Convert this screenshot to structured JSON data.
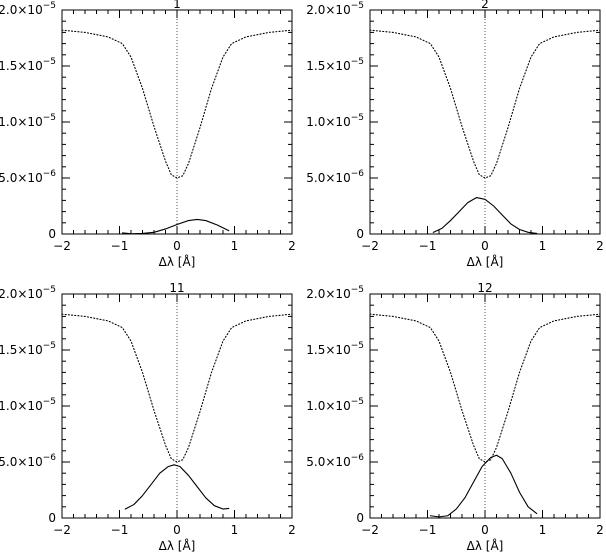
{
  "chart_data": [
    {
      "type": "line",
      "title": "1",
      "xlabel": "Δλ [Å]",
      "ylabel": "",
      "xlim": [
        -2,
        2
      ],
      "ylim": [
        0,
        2e-05
      ],
      "x_ticks": [
        -2,
        -1,
        0,
        1,
        2
      ],
      "x_tick_labels": [
        "−2",
        "−1",
        "0",
        "1",
        "2"
      ],
      "y_ticks": [
        0,
        5e-06,
        1e-05,
        1.5e-05,
        2e-05
      ],
      "y_tick_labels": [
        {
          "mant": "0",
          "exp": ""
        },
        {
          "mant": "5.0×10",
          "exp": "−6"
        },
        {
          "mant": "1.0×10",
          "exp": "−5"
        },
        {
          "mant": "1.5×10",
          "exp": "−5"
        },
        {
          "mant": "2.0×10",
          "exp": "−5"
        }
      ],
      "grid": false,
      "zero_line": {
        "x": 0,
        "style": "dotted"
      },
      "series": [
        {
          "style": "dotted",
          "x": [
            -2.0,
            -1.6,
            -1.2,
            -0.95,
            -0.8,
            -0.6,
            -0.4,
            -0.2,
            -0.1,
            0.0,
            0.1,
            0.2,
            0.4,
            0.6,
            0.8,
            0.95,
            1.2,
            1.6,
            2.0
          ],
          "values": [
            1.82e-05,
            1.8e-05,
            1.76e-05,
            1.7e-05,
            1.58e-05,
            1.3e-05,
            9.6e-06,
            6.5e-06,
            5.3e-06,
            5e-06,
            5.2e-06,
            6.3e-06,
            9.5e-06,
            1.3e-05,
            1.58e-05,
            1.7e-05,
            1.76e-05,
            1.8e-05,
            1.82e-05
          ]
        },
        {
          "style": "solid",
          "x": [
            -0.95,
            -0.8,
            -0.6,
            -0.4,
            -0.2,
            0.0,
            0.2,
            0.35,
            0.5,
            0.7,
            0.9
          ],
          "values": [
            1e-07,
            2e-08,
            5e-08,
            1.5e-07,
            4.5e-07,
            8.5e-07,
            1.2e-06,
            1.3e-06,
            1.2e-06,
            8e-07,
            3e-07
          ]
        }
      ]
    },
    {
      "type": "line",
      "title": "2",
      "xlabel": "Δλ [Å]",
      "ylabel": "",
      "xlim": [
        -2,
        2
      ],
      "ylim": [
        0,
        2e-05
      ],
      "x_ticks": [
        -2,
        -1,
        0,
        1,
        2
      ],
      "x_tick_labels": [
        "−2",
        "−1",
        "0",
        "1",
        "2"
      ],
      "y_ticks": [
        0,
        5e-06,
        1e-05,
        1.5e-05,
        2e-05
      ],
      "y_tick_labels": [
        {
          "mant": "0",
          "exp": ""
        },
        {
          "mant": "5.0×10",
          "exp": "−6"
        },
        {
          "mant": "1.0×10",
          "exp": "−5"
        },
        {
          "mant": "1.5×10",
          "exp": "−5"
        },
        {
          "mant": "2.0×10",
          "exp": "−5"
        }
      ],
      "grid": false,
      "zero_line": {
        "x": 0,
        "style": "dotted"
      },
      "series": [
        {
          "style": "dotted",
          "x": [
            -2.0,
            -1.6,
            -1.2,
            -0.95,
            -0.8,
            -0.6,
            -0.4,
            -0.2,
            -0.1,
            0.0,
            0.1,
            0.2,
            0.4,
            0.6,
            0.8,
            0.95,
            1.2,
            1.6,
            2.0
          ],
          "values": [
            1.82e-05,
            1.8e-05,
            1.76e-05,
            1.7e-05,
            1.58e-05,
            1.3e-05,
            9.6e-06,
            6.5e-06,
            5.3e-06,
            5e-06,
            5.2e-06,
            6.3e-06,
            9.5e-06,
            1.3e-05,
            1.58e-05,
            1.7e-05,
            1.76e-05,
            1.8e-05,
            1.82e-05
          ]
        },
        {
          "style": "solid",
          "x": [
            -0.9,
            -0.75,
            -0.6,
            -0.45,
            -0.3,
            -0.15,
            0.0,
            0.15,
            0.3,
            0.45,
            0.6,
            0.75,
            0.9
          ],
          "values": [
            1.5e-07,
            5e-07,
            1.2e-06,
            2e-06,
            2.8e-06,
            3.25e-06,
            3.1e-06,
            2.5e-06,
            1.7e-06,
            9e-07,
            4e-07,
            1.5e-07,
            5e-08
          ]
        }
      ]
    },
    {
      "type": "line",
      "title": "11",
      "xlabel": "Δλ [Å]",
      "ylabel": "",
      "xlim": [
        -2,
        2
      ],
      "ylim": [
        0,
        2e-05
      ],
      "x_ticks": [
        -2,
        -1,
        0,
        1,
        2
      ],
      "x_tick_labels": [
        "−2",
        "−1",
        "0",
        "1",
        "2"
      ],
      "y_ticks": [
        0,
        5e-06,
        1e-05,
        1.5e-05,
        2e-05
      ],
      "y_tick_labels": [
        {
          "mant": "0",
          "exp": ""
        },
        {
          "mant": "5.0×10",
          "exp": "−6"
        },
        {
          "mant": "1.0×10",
          "exp": "−5"
        },
        {
          "mant": "1.5×10",
          "exp": "−5"
        },
        {
          "mant": "2.0×10",
          "exp": "−5"
        }
      ],
      "grid": false,
      "zero_line": {
        "x": 0,
        "style": "dotted"
      },
      "series": [
        {
          "style": "dotted",
          "x": [
            -2.0,
            -1.6,
            -1.2,
            -0.95,
            -0.8,
            -0.6,
            -0.4,
            -0.2,
            -0.1,
            0.0,
            0.1,
            0.2,
            0.4,
            0.6,
            0.8,
            0.95,
            1.2,
            1.6,
            2.0
          ],
          "values": [
            1.82e-05,
            1.8e-05,
            1.76e-05,
            1.7e-05,
            1.58e-05,
            1.3e-05,
            9.6e-06,
            6.5e-06,
            5.3e-06,
            5e-06,
            5.2e-06,
            6.3e-06,
            9.5e-06,
            1.3e-05,
            1.58e-05,
            1.7e-05,
            1.76e-05,
            1.8e-05,
            1.82e-05
          ]
        },
        {
          "style": "solid",
          "x": [
            -0.9,
            -0.75,
            -0.6,
            -0.45,
            -0.3,
            -0.15,
            -0.05,
            0.05,
            0.2,
            0.35,
            0.5,
            0.65,
            0.8,
            0.9
          ],
          "values": [
            8e-07,
            1.2e-06,
            2e-06,
            3e-06,
            4e-06,
            4.6e-06,
            4.75e-06,
            4.6e-06,
            3.8e-06,
            2.8e-06,
            1.8e-06,
            1.1e-06,
            8e-07,
            8.5e-07
          ]
        }
      ]
    },
    {
      "type": "line",
      "title": "12",
      "xlabel": "Δλ [Å]",
      "ylabel": "",
      "xlim": [
        -2,
        2
      ],
      "ylim": [
        0,
        2e-05
      ],
      "x_ticks": [
        -2,
        -1,
        0,
        1,
        2
      ],
      "x_tick_labels": [
        "−2",
        "−1",
        "0",
        "1",
        "2"
      ],
      "y_ticks": [
        0,
        5e-06,
        1e-05,
        1.5e-05,
        2e-05
      ],
      "y_tick_labels": [
        {
          "mant": "0",
          "exp": ""
        },
        {
          "mant": "5.0×10",
          "exp": "−6"
        },
        {
          "mant": "1.0×10",
          "exp": "−5"
        },
        {
          "mant": "1.5×10",
          "exp": "−5"
        },
        {
          "mant": "2.0×10",
          "exp": "−5"
        }
      ],
      "grid": false,
      "zero_line": {
        "x": 0,
        "style": "dotted"
      },
      "series": [
        {
          "style": "dotted",
          "x": [
            -2.0,
            -1.6,
            -1.2,
            -0.95,
            -0.8,
            -0.6,
            -0.4,
            -0.2,
            -0.1,
            0.0,
            0.1,
            0.2,
            0.4,
            0.6,
            0.8,
            0.95,
            1.2,
            1.6,
            2.0
          ],
          "values": [
            1.82e-05,
            1.8e-05,
            1.76e-05,
            1.7e-05,
            1.58e-05,
            1.3e-05,
            9.6e-06,
            6.5e-06,
            5.3e-06,
            5e-06,
            5.2e-06,
            6.3e-06,
            9.5e-06,
            1.3e-05,
            1.58e-05,
            1.7e-05,
            1.76e-05,
            1.8e-05,
            1.82e-05
          ]
        },
        {
          "style": "solid",
          "x": [
            -0.95,
            -0.8,
            -0.65,
            -0.5,
            -0.35,
            -0.2,
            -0.05,
            0.1,
            0.2,
            0.3,
            0.45,
            0.6,
            0.75,
            0.9
          ],
          "values": [
            2e-07,
            1e-07,
            2e-07,
            8e-07,
            1.8e-06,
            3.2e-06,
            4.6e-06,
            5.4e-06,
            5.6e-06,
            5.3e-06,
            4e-06,
            2.3e-06,
            1e-06,
            4e-07
          ]
        }
      ]
    }
  ]
}
